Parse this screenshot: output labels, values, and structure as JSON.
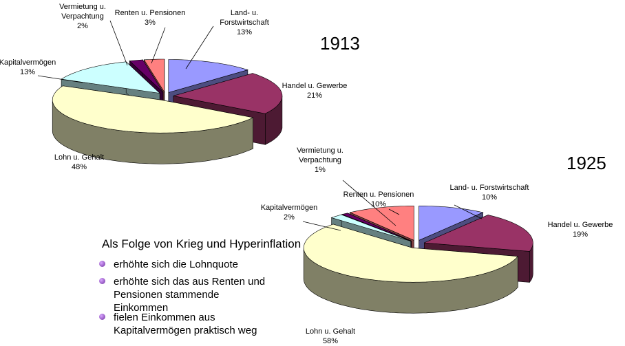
{
  "chart_data": [
    {
      "type": "pie",
      "title": "1913",
      "categories": [
        "Land- u. Forstwirtschaft",
        "Handel u. Gewerbe",
        "Lohn u. Gehalt",
        "Kapitalvermögen",
        "Vermietung u. Verpachtung",
        "Renten u. Pensionen"
      ],
      "values": [
        13,
        21,
        48,
        13,
        2,
        3
      ],
      "value_labels": [
        "13%",
        "21%",
        "48%",
        "13%",
        "2%",
        "3%"
      ],
      "colors": [
        "#9999ff",
        "#993366",
        "#ffffcc",
        "#ccffff",
        "#660066",
        "#ff8080"
      ]
    },
    {
      "type": "pie",
      "title": "1925",
      "categories": [
        "Land- u. Forstwirtschaft",
        "Handel u. Gewerbe",
        "Lohn u. Gehalt",
        "Kapitalvermögen",
        "Vermietung u. Verpachtung",
        "Renten u. Pensionen"
      ],
      "values": [
        10,
        19,
        58,
        2,
        1,
        10
      ],
      "value_labels": [
        "10%",
        "19%",
        "58%",
        "2%",
        "1%",
        "10%"
      ],
      "colors": [
        "#9999ff",
        "#993366",
        "#ffffcc",
        "#ccffff",
        "#660066",
        "#ff8080"
      ]
    }
  ],
  "text": {
    "heading": "Als Folge von Krieg und Hyperinflation",
    "bullets": [
      "erhöhte sich die Lohnquote",
      "erhöhte sich das aus Renten und Pensionen stammende Einkommen",
      "fielen Einkommen aus Kapitalvermögen praktisch weg"
    ]
  }
}
